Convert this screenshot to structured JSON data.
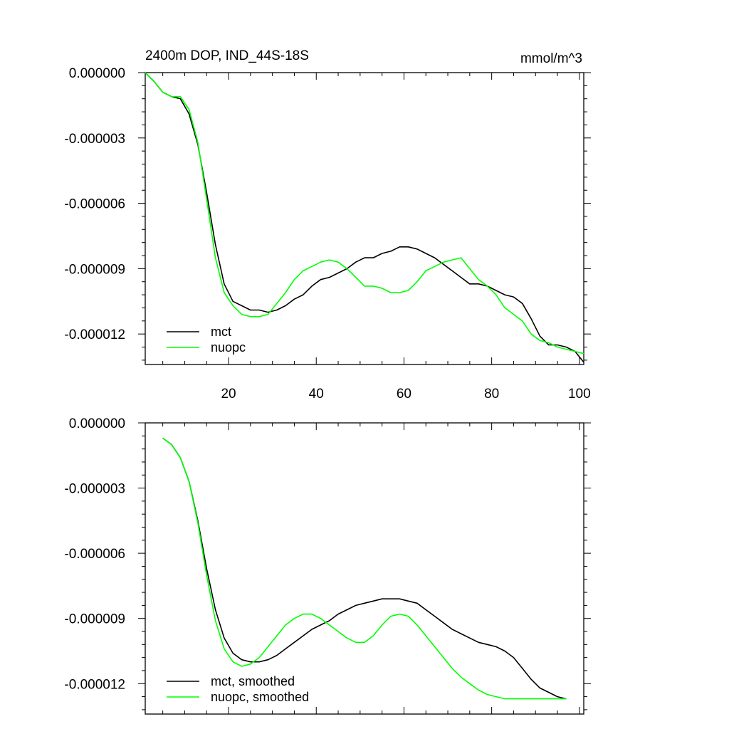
{
  "chart_data": [
    {
      "type": "line",
      "title": "2400m DOP, IND_44S-18S",
      "units": "mmol/m^3",
      "xlabel": "",
      "ylabel": "",
      "xlim": [
        1,
        101
      ],
      "ylim": [
        -1.34e-05,
        0.0
      ],
      "x_ticks": [
        20,
        40,
        60,
        80,
        100
      ],
      "x_tick_labels": [
        "20",
        "40",
        "60",
        "80",
        "100"
      ],
      "y_ticks": [
        0,
        -3e-06,
        -6e-06,
        -9e-06,
        -1.2e-05
      ],
      "y_tick_labels": [
        "0.000000",
        "-0.000003",
        "-0.000006",
        "-0.000009",
        "-0.000012"
      ],
      "legend_position": "bottom-left",
      "series": [
        {
          "name": "mct",
          "color": "#000000",
          "x": [
            1,
            3,
            5,
            7,
            9,
            11,
            13,
            15,
            17,
            19,
            21,
            23,
            25,
            27,
            29,
            31,
            33,
            35,
            37,
            39,
            41,
            43,
            45,
            47,
            49,
            51,
            53,
            55,
            57,
            59,
            61,
            63,
            65,
            67,
            69,
            71,
            73,
            75,
            77,
            79,
            81,
            83,
            85,
            87,
            89,
            91,
            93,
            95,
            97,
            99,
            101
          ],
          "values": [
            0.0,
            -4e-07,
            -9e-07,
            -1.1e-06,
            -1.2e-06,
            -1.9e-06,
            -3.3e-06,
            -5.5e-06,
            -7.9e-06,
            -9.7e-06,
            -1.05e-05,
            -1.07e-05,
            -1.09e-05,
            -1.09e-05,
            -1.1e-05,
            -1.09e-05,
            -1.07e-05,
            -1.04e-05,
            -1.02e-05,
            -9.8e-06,
            -9.5e-06,
            -9.4e-06,
            -9.2e-06,
            -9e-06,
            -8.7e-06,
            -8.5e-06,
            -8.5e-06,
            -8.3e-06,
            -8.2e-06,
            -8e-06,
            -8e-06,
            -8.1e-06,
            -8.3e-06,
            -8.5e-06,
            -8.8e-06,
            -9.1e-06,
            -9.4e-06,
            -9.7e-06,
            -9.7e-06,
            -9.8e-06,
            -1e-05,
            -1.02e-05,
            -1.03e-05,
            -1.06e-05,
            -1.13e-05,
            -1.21e-05,
            -1.25e-05,
            -1.25e-05,
            -1.26e-05,
            -1.28e-05,
            -1.33e-05
          ]
        },
        {
          "name": "nuopc",
          "color": "#00ff00",
          "x": [
            1,
            3,
            5,
            7,
            9,
            11,
            13,
            15,
            17,
            19,
            21,
            23,
            25,
            27,
            29,
            31,
            33,
            35,
            37,
            39,
            41,
            43,
            45,
            47,
            49,
            51,
            53,
            55,
            57,
            59,
            61,
            63,
            65,
            67,
            69,
            71,
            73,
            75,
            77,
            79,
            81,
            83,
            85,
            87,
            89,
            91,
            93,
            95,
            97,
            99,
            101
          ],
          "values": [
            0.0,
            -4e-07,
            -9e-07,
            -1.1e-06,
            -1.1e-06,
            -1.7e-06,
            -3.2e-06,
            -5.8e-06,
            -8.5e-06,
            -1.01e-05,
            -1.07e-05,
            -1.11e-05,
            -1.12e-05,
            -1.12e-05,
            -1.11e-05,
            -1.06e-05,
            -1.01e-05,
            -9.5e-06,
            -9.1e-06,
            -8.9e-06,
            -8.7e-06,
            -8.6e-06,
            -8.7e-06,
            -9e-06,
            -9.4e-06,
            -9.8e-06,
            -9.8e-06,
            -9.9e-06,
            -1.01e-05,
            -1.01e-05,
            -1e-05,
            -9.6e-06,
            -9.1e-06,
            -8.9e-06,
            -8.7e-06,
            -8.6e-06,
            -8.5e-06,
            -9e-06,
            -9.5e-06,
            -9.8e-06,
            -1.02e-05,
            -1.08e-05,
            -1.11e-05,
            -1.14e-05,
            -1.2e-05,
            -1.23e-05,
            -1.24e-05,
            -1.26e-05,
            -1.27e-05,
            -1.28e-05,
            -1.29e-05
          ]
        }
      ]
    },
    {
      "type": "line",
      "title": "",
      "xlabel": "",
      "ylabel": "",
      "xlim": [
        1,
        101
      ],
      "ylim": [
        -1.34e-05,
        0.0
      ],
      "x_ticks": [
        20,
        40,
        60,
        80,
        100
      ],
      "y_ticks": [
        0,
        -3e-06,
        -6e-06,
        -9e-06,
        -1.2e-05
      ],
      "y_tick_labels": [
        "0.000000",
        "-0.000003",
        "-0.000006",
        "-0.000009",
        "-0.000012"
      ],
      "legend_position": "bottom-left",
      "series": [
        {
          "name": "mct, smoothed",
          "color": "#000000",
          "x": [
            5,
            7,
            9,
            11,
            13,
            15,
            17,
            19,
            21,
            23,
            25,
            27,
            29,
            31,
            33,
            35,
            37,
            39,
            41,
            43,
            45,
            47,
            49,
            51,
            53,
            55,
            57,
            59,
            61,
            63,
            65,
            67,
            69,
            71,
            73,
            75,
            77,
            79,
            81,
            83,
            85,
            87,
            89,
            91,
            93,
            95,
            97
          ],
          "values": [
            -7e-07,
            -1e-06,
            -1.6e-06,
            -2.7e-06,
            -4.5e-06,
            -6.7e-06,
            -8.6e-06,
            -9.9e-06,
            -1.06e-05,
            -1.09e-05,
            -1.1e-05,
            -1.1e-05,
            -1.09e-05,
            -1.07e-05,
            -1.04e-05,
            -1.01e-05,
            -9.8e-06,
            -9.5e-06,
            -9.3e-06,
            -9.1e-06,
            -8.8e-06,
            -8.6e-06,
            -8.4e-06,
            -8.3e-06,
            -8.2e-06,
            -8.1e-06,
            -8.1e-06,
            -8.1e-06,
            -8.2e-06,
            -8.3e-06,
            -8.6e-06,
            -8.9e-06,
            -9.2e-06,
            -9.5e-06,
            -9.7e-06,
            -9.9e-06,
            -1.01e-05,
            -1.02e-05,
            -1.03e-05,
            -1.05e-05,
            -1.08e-05,
            -1.13e-05,
            -1.18e-05,
            -1.22e-05,
            -1.24e-05,
            -1.26e-05,
            -1.27e-05
          ]
        },
        {
          "name": "nuopc, smoothed",
          "color": "#00ff00",
          "x": [
            5,
            7,
            9,
            11,
            13,
            15,
            17,
            19,
            21,
            23,
            25,
            27,
            29,
            31,
            33,
            35,
            37,
            39,
            41,
            43,
            45,
            47,
            49,
            51,
            53,
            55,
            57,
            59,
            61,
            63,
            65,
            67,
            69,
            71,
            73,
            75,
            77,
            79,
            81,
            83,
            85,
            87,
            89,
            91,
            93,
            95,
            97
          ],
          "values": [
            -7e-07,
            -1e-06,
            -1.6e-06,
            -2.7e-06,
            -4.6e-06,
            -7e-06,
            -9.1e-06,
            -1.04e-05,
            -1.1e-05,
            -1.12e-05,
            -1.11e-05,
            -1.08e-05,
            -1.03e-05,
            -9.8e-06,
            -9.3e-06,
            -9e-06,
            -8.8e-06,
            -8.8e-06,
            -9e-06,
            -9.3e-06,
            -9.6e-06,
            -9.9e-06,
            -1.01e-05,
            -1.01e-05,
            -9.8e-06,
            -9.3e-06,
            -8.9e-06,
            -8.8e-06,
            -8.9e-06,
            -9.3e-06,
            -9.8e-06,
            -1.03e-05,
            -1.08e-05,
            -1.13e-05,
            -1.17e-05,
            -1.2e-05,
            -1.23e-05,
            -1.25e-05,
            -1.26e-05,
            -1.27e-05,
            -1.27e-05,
            -1.27e-05,
            -1.27e-05,
            -1.27e-05,
            -1.27e-05,
            -1.27e-05,
            -1.27e-05
          ]
        }
      ]
    }
  ]
}
